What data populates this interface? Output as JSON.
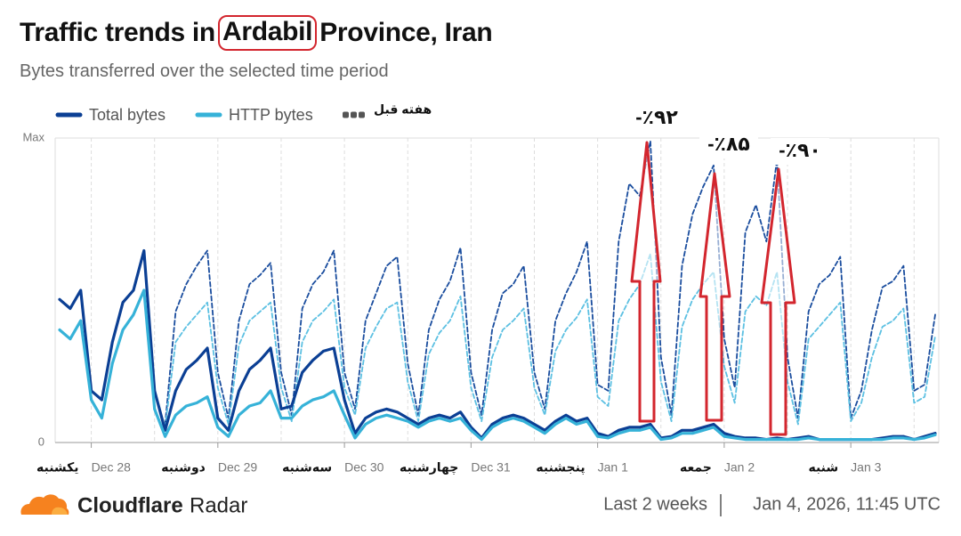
{
  "chart_data": {
    "type": "line",
    "title": [
      "Traffic trends in",
      "Ardabil",
      "Province, Iran"
    ],
    "subtitle": "Bytes transferred over the selected time period",
    "categories": [
      null,
      null,
      null,
      "Dec 28",
      null,
      null,
      null,
      null,
      null,
      null,
      null,
      null,
      null,
      null,
      null,
      "Dec 29",
      null,
      null,
      null,
      null,
      null,
      null,
      null,
      null,
      null,
      null,
      null,
      "Dec 30",
      null,
      null,
      null,
      null,
      null,
      null,
      null,
      null,
      null,
      null,
      null,
      "Dec 31",
      null,
      null,
      null,
      null,
      null,
      null,
      null,
      null,
      null,
      null,
      null,
      "Jan 1",
      null,
      null,
      null,
      null,
      null,
      null,
      null,
      null,
      null,
      null,
      null,
      "Jan 2",
      null,
      null,
      null,
      null,
      null,
      null,
      null,
      null,
      null,
      null,
      null,
      "Jan 3",
      null,
      null,
      null,
      null,
      null,
      null,
      null,
      null
    ],
    "weekday_labels": [
      null,
      null,
      null,
      "یکشنبه",
      null,
      null,
      null,
      null,
      null,
      null,
      null,
      null,
      null,
      null,
      null,
      "دوشنبه",
      null,
      null,
      null,
      null,
      null,
      null,
      null,
      null,
      null,
      null,
      null,
      "سه‌شنبه",
      null,
      null,
      null,
      null,
      null,
      null,
      null,
      null,
      null,
      null,
      null,
      "چهارشنبه",
      null,
      null,
      null,
      null,
      null,
      null,
      null,
      null,
      null,
      null,
      null,
      "پنجشنبه",
      null,
      null,
      null,
      null,
      null,
      null,
      null,
      null,
      null,
      null,
      null,
      "جمعه",
      null,
      null,
      null,
      null,
      null,
      null,
      null,
      null,
      null,
      null,
      null,
      "شنبه",
      null,
      null,
      null,
      null,
      null,
      null,
      null,
      null
    ],
    "series": [
      {
        "name": "Total bytes",
        "color": "#0b3f94",
        "dashed": false,
        "values": [
          47,
          44,
          50,
          17,
          14,
          33,
          46,
          50,
          63,
          17,
          4,
          17,
          24,
          27,
          31,
          8,
          4,
          17,
          24,
          27,
          31,
          11,
          12,
          23,
          27,
          30,
          31,
          14,
          3,
          8,
          10,
          11,
          10,
          8,
          6,
          8,
          9,
          8,
          10,
          5,
          1.5,
          6,
          8,
          9,
          8,
          6,
          4,
          7,
          9,
          7,
          8,
          3,
          2,
          4,
          5,
          5,
          6,
          1.5,
          2,
          4,
          4,
          5,
          6,
          3,
          2,
          1.5,
          1.5,
          1,
          1.5,
          1,
          1.5,
          2,
          1,
          1,
          1,
          1,
          1,
          1,
          1.5,
          2,
          2,
          1,
          2,
          3
        ]
      },
      {
        "name": "HTTP bytes",
        "color": "#36b2d8",
        "dashed": false,
        "values": [
          37,
          34,
          40,
          14,
          8,
          26,
          37,
          42,
          50,
          11,
          2,
          9,
          12,
          13,
          15,
          5,
          2,
          9,
          12,
          13,
          17,
          8,
          8,
          12,
          14,
          15,
          17,
          9,
          1.5,
          6,
          8,
          9,
          8,
          7,
          5,
          7,
          8,
          7,
          8,
          4,
          1,
          5,
          7,
          8,
          7,
          5,
          3,
          6,
          8,
          6,
          7,
          2,
          1.5,
          3,
          4,
          4,
          5,
          1,
          1.5,
          3,
          3,
          4,
          5,
          2,
          1.5,
          1,
          1,
          1,
          1,
          1,
          1,
          1.5,
          1,
          1,
          1,
          1,
          1,
          1,
          1,
          1.5,
          1.5,
          1,
          1.5,
          2.5
        ]
      },
      {
        "name": "هفته قبل",
        "color": "#1a4d9e",
        "dashed": true,
        "values": [
          null,
          null,
          null,
          null,
          null,
          null,
          null,
          null,
          null,
          null,
          6,
          43,
          52,
          58,
          63,
          23,
          8,
          40,
          52,
          55,
          59,
          23,
          9,
          44,
          52,
          56,
          63,
          23,
          11,
          40,
          49,
          58,
          61,
          26,
          9,
          37,
          47,
          53,
          64,
          23,
          9,
          37,
          49,
          52,
          58,
          23,
          11,
          40,
          49,
          56,
          66,
          19,
          17,
          66,
          85,
          81,
          99,
          28,
          9,
          58,
          75,
          84,
          91,
          34,
          18,
          69,
          78,
          66,
          93,
          28,
          8,
          43,
          52,
          55,
          61,
          8,
          17,
          37,
          51,
          53,
          58,
          17,
          19,
          42
        ]
      },
      {
        "color": "#5cc0e2",
        "dashed": true,
        "values": [
          null,
          null,
          null,
          null,
          null,
          null,
          null,
          null,
          null,
          null,
          5,
          33,
          38,
          42,
          46,
          18,
          6,
          32,
          40,
          43,
          46,
          18,
          7,
          33,
          40,
          43,
          47,
          18,
          9,
          31,
          38,
          44,
          46,
          20,
          7,
          29,
          36,
          40,
          48,
          18,
          7,
          28,
          37,
          40,
          44,
          18,
          9,
          30,
          37,
          41,
          47,
          15,
          12,
          40,
          47,
          52,
          62,
          20,
          7,
          38,
          47,
          52,
          56,
          25,
          13,
          43,
          48,
          45,
          56,
          20,
          6,
          34,
          38,
          42,
          46,
          7,
          13,
          28,
          38,
          40,
          44,
          13,
          15,
          35
        ]
      }
    ],
    "ylim": [
      0,
      100
    ],
    "yticks": [
      0,
      {
        "value": 100,
        "label": "Max"
      }
    ],
    "grid": true,
    "annotations": [
      "-٪۹۲",
      "-٪۸۵",
      "-٪۹۰"
    ],
    "footer": {
      "brand": "Cloudflare",
      "product": "Radar",
      "period": "Last 2 weeks",
      "timestamp": "Jan 4, 2026, 11:45 UTC"
    }
  }
}
